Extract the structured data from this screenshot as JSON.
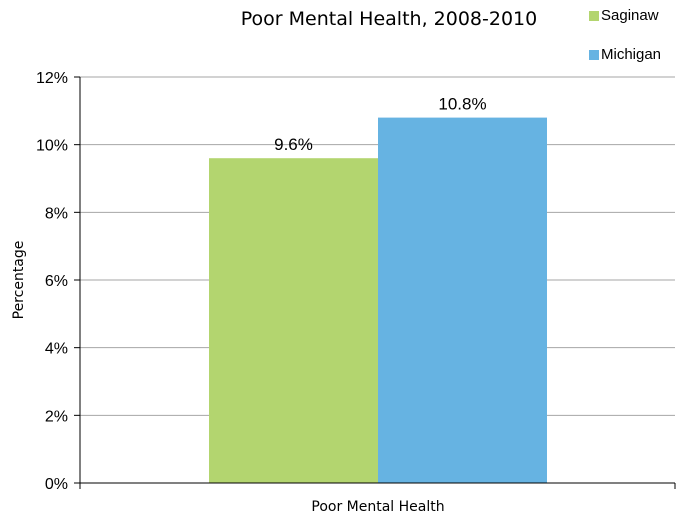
{
  "chart_data": {
    "type": "bar",
    "title": "Poor Mental Health, 2008-2010",
    "xlabel": "",
    "ylabel": "Percentage",
    "categories": [
      "Poor Mental Health"
    ],
    "series": [
      {
        "name": "Saginaw",
        "values": [
          9.6
        ],
        "labels": [
          "9.6%"
        ],
        "color": "#b3d56f"
      },
      {
        "name": "Michigan",
        "values": [
          10.8
        ],
        "labels": [
          "10.8%"
        ],
        "color": "#66b3e2"
      }
    ],
    "ylim": [
      0,
      12
    ],
    "y_ticks": [
      0,
      2,
      4,
      6,
      8,
      10,
      12
    ],
    "y_tick_labels": [
      "0%",
      "2%",
      "4%",
      "6%",
      "8%",
      "10%",
      "12%"
    ],
    "grid": true,
    "legend_position": "top-right"
  }
}
